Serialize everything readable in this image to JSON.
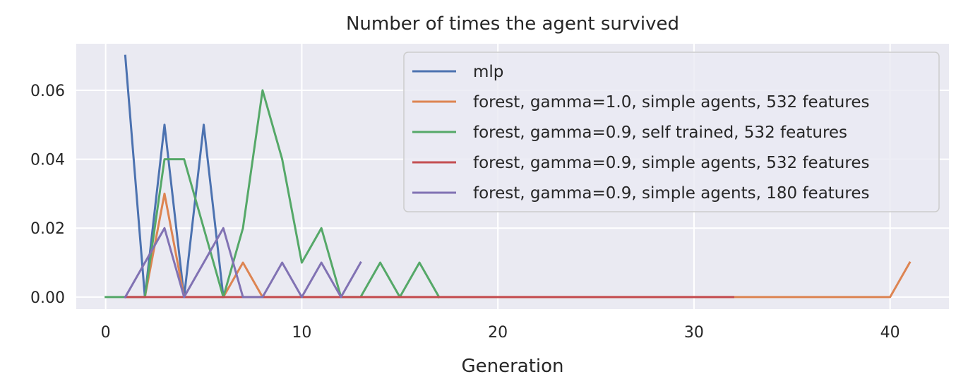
{
  "chart_data": {
    "type": "line",
    "title": "Number of times the agent survived",
    "xlabel": "Generation",
    "ylabel": "",
    "xlim": [
      -1.5,
      43
    ],
    "ylim": [
      -0.0035,
      0.0735
    ],
    "xticks": [
      0,
      10,
      20,
      30,
      40
    ],
    "yticks": [
      0.0,
      0.02,
      0.04,
      0.06
    ],
    "ytick_labels": [
      "0.00",
      "0.02",
      "0.04",
      "0.06"
    ],
    "grid": true,
    "legend_position": "top-right",
    "series": [
      {
        "name": "mlp",
        "color": "#4c72b0",
        "x": [
          1,
          2,
          3,
          4,
          5,
          6
        ],
        "y": [
          0.07,
          0.0,
          0.05,
          0.0,
          0.05,
          0.0
        ]
      },
      {
        "name": "forest, gamma=1.0, simple agents, 532 features",
        "color": "#dd8452",
        "x": [
          1,
          2,
          3,
          4,
          5,
          6,
          7,
          8,
          9,
          10,
          11,
          12,
          13,
          14,
          15,
          16,
          17,
          18,
          19,
          20,
          21,
          22,
          23,
          24,
          25,
          26,
          27,
          28,
          29,
          30,
          31,
          32,
          33,
          34,
          35,
          36,
          37,
          38,
          39,
          40,
          41
        ],
        "y": [
          0.0,
          0.0,
          0.03,
          0.0,
          0.0,
          0.0,
          0.01,
          0.0,
          0.0,
          0.0,
          0.0,
          0.0,
          0.0,
          0.0,
          0.0,
          0.0,
          0.0,
          0.0,
          0.0,
          0.0,
          0.0,
          0.0,
          0.0,
          0.0,
          0.0,
          0.0,
          0.0,
          0.0,
          0.0,
          0.0,
          0.0,
          0.0,
          0.0,
          0.0,
          0.0,
          0.0,
          0.0,
          0.0,
          0.0,
          0.0,
          0.01
        ]
      },
      {
        "name": "forest, gamma=0.9, self trained, 532 features",
        "color": "#55a868",
        "x": [
          0,
          1,
          2,
          3,
          4,
          5,
          6,
          7,
          8,
          9,
          10,
          11,
          12,
          13,
          14,
          15,
          16,
          17
        ],
        "y": [
          0.0,
          0.0,
          0.0,
          0.04,
          0.04,
          0.02,
          0.0,
          0.02,
          0.06,
          0.04,
          0.01,
          0.02,
          0.0,
          0.0,
          0.01,
          0.0,
          0.01,
          0.0
        ]
      },
      {
        "name": "forest, gamma=0.9, simple agents, 532 features",
        "color": "#c44e52",
        "x": [
          1,
          2,
          3,
          4,
          5,
          6,
          7,
          8,
          9,
          10,
          11,
          12,
          13,
          14,
          15,
          16,
          17,
          18,
          19,
          20,
          21,
          22,
          23,
          24,
          25,
          26,
          27,
          28,
          29,
          30,
          31,
          32
        ],
        "y": [
          0,
          0,
          0,
          0,
          0,
          0,
          0,
          0,
          0,
          0,
          0,
          0,
          0,
          0,
          0,
          0,
          0,
          0,
          0,
          0,
          0,
          0,
          0,
          0,
          0,
          0,
          0,
          0,
          0,
          0,
          0,
          0
        ]
      },
      {
        "name": "forest, gamma=0.9, simple agents, 180 features",
        "color": "#8172b3",
        "x": [
          1,
          2,
          3,
          4,
          5,
          6,
          7,
          8,
          9,
          10,
          11,
          12,
          13
        ],
        "y": [
          0.0,
          0.01,
          0.02,
          0.0,
          0.01,
          0.02,
          0.0,
          0.0,
          0.01,
          0.0,
          0.01,
          0.0,
          0.01
        ]
      }
    ]
  }
}
